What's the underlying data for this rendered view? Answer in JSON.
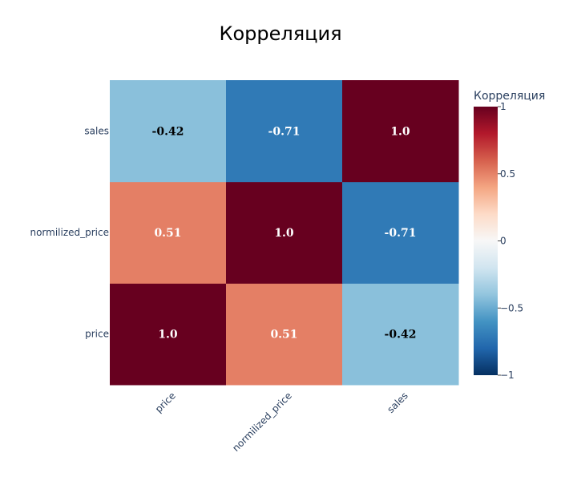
{
  "chart_data": {
    "type": "heatmap",
    "title": "Корреляция",
    "x_categories": [
      "price",
      "normilized_price",
      "sales"
    ],
    "y_categories": [
      "price",
      "normilized_price",
      "sales"
    ],
    "z": [
      [
        1.0,
        0.51,
        -0.42
      ],
      [
        0.51,
        1.0,
        -0.71
      ],
      [
        -0.42,
        -0.71,
        1.0
      ]
    ],
    "cell_text": [
      [
        "1.0",
        "0.51",
        "-0.42"
      ],
      [
        "0.51",
        "1.0",
        "-0.71"
      ],
      [
        "-0.42",
        "-0.71",
        "1.0"
      ]
    ],
    "colorscale": "RdBu",
    "zmin": -1,
    "zmax": 1,
    "colorbar": {
      "title": "Корреляция",
      "tick_values": [
        1,
        0.5,
        0,
        -0.5,
        -1
      ],
      "tick_labels": [
        "1",
        "0.5",
        "0",
        "−0.5",
        "−1"
      ]
    },
    "xlabel": "",
    "ylabel": "",
    "colors": {
      "scale": [
        "#053061",
        "#2166ac",
        "#4393c3",
        "#92c5de",
        "#d1e5f0",
        "#f7f7f7",
        "#fddbc7",
        "#f4a582",
        "#d6604d",
        "#b2182b",
        "#67001f"
      ]
    }
  }
}
